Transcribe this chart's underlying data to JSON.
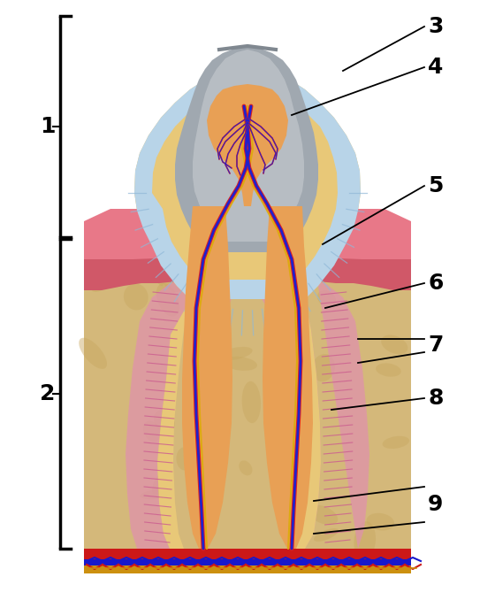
{
  "fig_width": 5.6,
  "fig_height": 6.78,
  "dpi": 100,
  "colors": {
    "bg": "#ffffff",
    "bone": "#d4b87a",
    "bone_dark": "#b89050",
    "bone_spot": "#c8a860",
    "dentin": "#e8c878",
    "dentin_root": "#ddb860",
    "enamel_bg": "#b8d4e8",
    "enamel_lines": "#90b8d8",
    "pulp": "#e8a055",
    "pulp_light": "#f0b870",
    "gum_pink": "#d05868",
    "gum_light": "#e87888",
    "pdl_pink": "#e090b0",
    "pdl_lines": "#cc6090",
    "cementum": "#c8a040",
    "crown_metal_hi": "#c8ccd0",
    "crown_metal_mid": "#a0a8b0",
    "crown_metal_dark": "#808890",
    "nerve_red": "#dd2020",
    "nerve_blue": "#2020cc",
    "nerve_yellow": "#ddaa10",
    "blood_red": "#cc1010",
    "blood_blue": "#1010cc",
    "blood_orange": "#cc6010",
    "bottom_red": "#cc1818",
    "bottom_blue": "#1818cc",
    "bottom_yellow": "#cc9010"
  },
  "label_fontsize": 18,
  "bracket_lw": 2.5
}
